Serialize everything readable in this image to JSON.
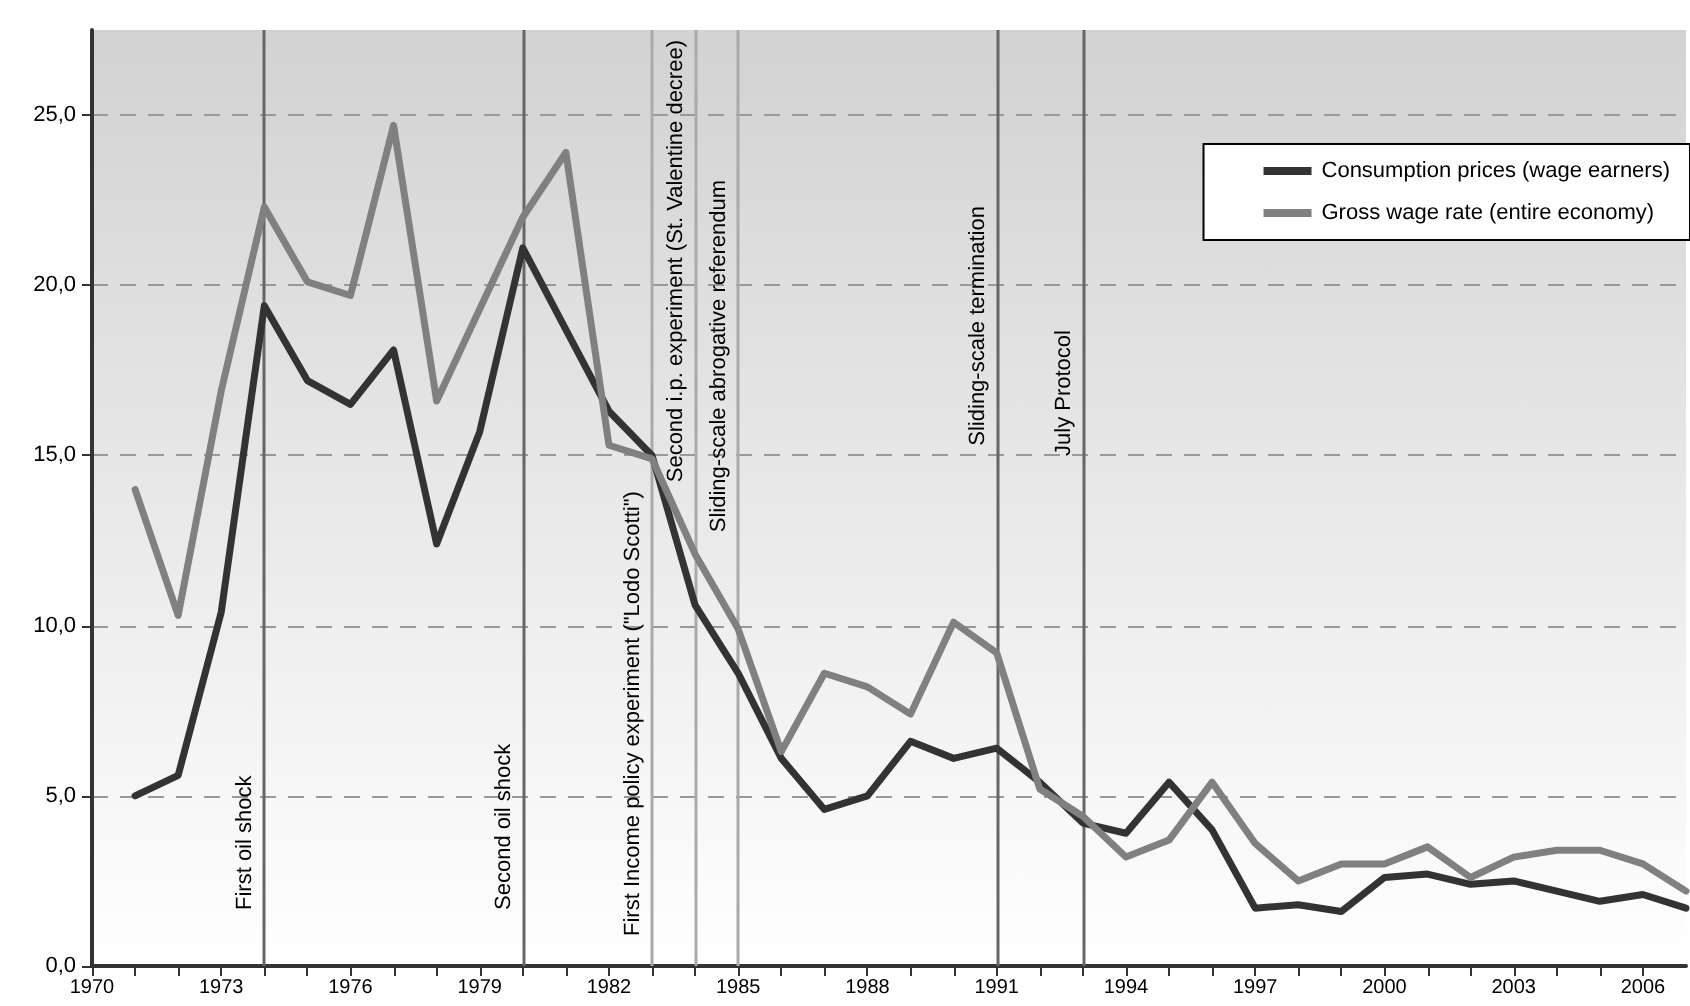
{
  "chart_data": {
    "type": "line",
    "x": [
      1971,
      1972,
      1973,
      1974,
      1975,
      1976,
      1977,
      1978,
      1979,
      1980,
      1981,
      1982,
      1983,
      1984,
      1985,
      1986,
      1987,
      1988,
      1989,
      1990,
      1991,
      1992,
      1993,
      1994,
      1995,
      1996,
      1997,
      1998,
      1999,
      2000,
      2001,
      2002,
      2003,
      2004,
      2005,
      2006,
      2007
    ],
    "series": [
      {
        "name": "Consumption prices (wage earners)",
        "color": "#333333",
        "values": [
          5.0,
          5.6,
          10.4,
          19.4,
          17.2,
          16.5,
          18.1,
          12.4,
          15.7,
          21.1,
          18.7,
          16.3,
          15.0,
          10.6,
          8.6,
          6.1,
          4.6,
          5.0,
          6.6,
          6.1,
          6.4,
          5.4,
          4.2,
          3.9,
          5.4,
          4.0,
          1.7,
          1.8,
          1.6,
          2.6,
          2.7,
          2.4,
          2.5,
          2.2,
          1.9,
          2.1,
          1.7
        ]
      },
      {
        "name": "Gross wage rate (entire economy)",
        "color": "#808080",
        "values": [
          14.0,
          10.3,
          16.9,
          22.3,
          20.1,
          19.7,
          24.7,
          16.6,
          19.3,
          22.0,
          23.9,
          15.3,
          14.9,
          12.1,
          9.9,
          6.3,
          8.6,
          8.2,
          7.4,
          10.1,
          9.2,
          5.2,
          4.4,
          3.2,
          3.7,
          5.4,
          3.6,
          2.5,
          3.0,
          3.0,
          3.5,
          2.6,
          3.2,
          3.4,
          3.4,
          3.0,
          2.2
        ]
      }
    ],
    "xlim": [
      1970,
      2007
    ],
    "xticks": [
      1970,
      {
        "value": 1971,
        "label": null
      },
      {
        "value": 1972,
        "label": null
      },
      1973,
      {
        "value": 1974,
        "label": null
      },
      {
        "value": 1975,
        "label": null
      },
      1976,
      {
        "value": 1977,
        "label": null
      },
      {
        "value": 1978,
        "label": null
      },
      1979,
      {
        "value": 1980,
        "label": null
      },
      {
        "value": 1981,
        "label": null
      },
      1982,
      {
        "value": 1983,
        "label": null
      },
      {
        "value": 1984,
        "label": null
      },
      1985,
      {
        "value": 1986,
        "label": null
      },
      {
        "value": 1987,
        "label": null
      },
      1988,
      {
        "value": 1989,
        "label": null
      },
      {
        "value": 1990,
        "label": null
      },
      1991,
      {
        "value": 1992,
        "label": null
      },
      {
        "value": 1993,
        "label": null
      },
      1994,
      {
        "value": 1995,
        "label": null
      },
      {
        "value": 1996,
        "label": null
      },
      1997,
      {
        "value": 1998,
        "label": null
      },
      {
        "value": 1999,
        "label": null
      },
      2000,
      {
        "value": 2001,
        "label": null
      },
      {
        "value": 2002,
        "label": null
      },
      2003,
      {
        "value": 2004,
        "label": null
      },
      {
        "value": 2005,
        "label": null
      },
      2006
    ],
    "ylim": [
      0,
      27.5
    ],
    "yticks": [
      {
        "value": 0,
        "label": "0,0"
      },
      {
        "value": 5,
        "label": "5,0"
      },
      {
        "value": 10,
        "label": "10,0"
      },
      {
        "value": 15,
        "label": "15,0"
      },
      {
        "value": 20,
        "label": "20,0"
      },
      {
        "value": 25,
        "label": "25,0"
      }
    ],
    "ref_lines": [
      {
        "axis": "x",
        "value": 1974,
        "label": "First oil shock",
        "color": "#666666"
      },
      {
        "axis": "x",
        "value": 1980,
        "label": "Second oil shock",
        "color": "#666666"
      },
      {
        "axis": "x",
        "value": 1983,
        "label": "First Income policy experiment (\"Lodo Scotti\")",
        "color": "#aaaaaa"
      },
      {
        "axis": "x",
        "value": 1984,
        "label": "Second i.p. experiment (St. Valentine decree)",
        "color": "#aaaaaa"
      },
      {
        "axis": "x",
        "value": 1985,
        "label": "Sliding-scale abrogative referendum",
        "color": "#aaaaaa"
      },
      {
        "axis": "x",
        "value": 1991,
        "label": "Sliding-scale termination",
        "color": "#666666"
      },
      {
        "axis": "x",
        "value": 1993,
        "label": "July Protocol",
        "color": "#666666"
      }
    ],
    "grid": "y",
    "legend": "top right",
    "marker": "none",
    "line_style": "solid"
  }
}
